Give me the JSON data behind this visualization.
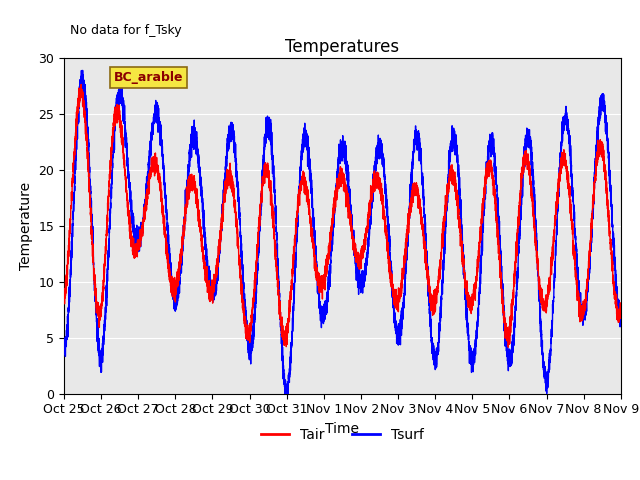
{
  "title": "Temperatures",
  "ylabel": "Temperature",
  "xlabel": "Time",
  "annotation": "No data for f_Tsky",
  "legend_box_label": "BC_arable",
  "ylim": [
    0,
    30
  ],
  "background_color": "#e8e8e8",
  "tair_color": "red",
  "tsurf_color": "blue",
  "tair_label": "Tair",
  "tsurf_label": "Tsurf",
  "xtick_labels": [
    "Oct 25",
    "Oct 26",
    "Oct 27",
    "Oct 28",
    "Oct 29",
    "Oct 30",
    "Oct 31",
    "Nov 1",
    "Nov 2",
    "Nov 3",
    "Nov 4",
    "Nov 5",
    "Nov 6",
    "Nov 7",
    "Nov 8",
    "Nov 9"
  ],
  "xtick_positions": [
    0,
    1,
    2,
    3,
    4,
    5,
    6,
    7,
    8,
    9,
    10,
    11,
    12,
    13,
    14,
    15
  ],
  "num_points": 7200,
  "duration_days": 15,
  "title_fontsize": 12,
  "axis_fontsize": 10,
  "tick_fontsize": 9,
  "legend_fontsize": 10
}
